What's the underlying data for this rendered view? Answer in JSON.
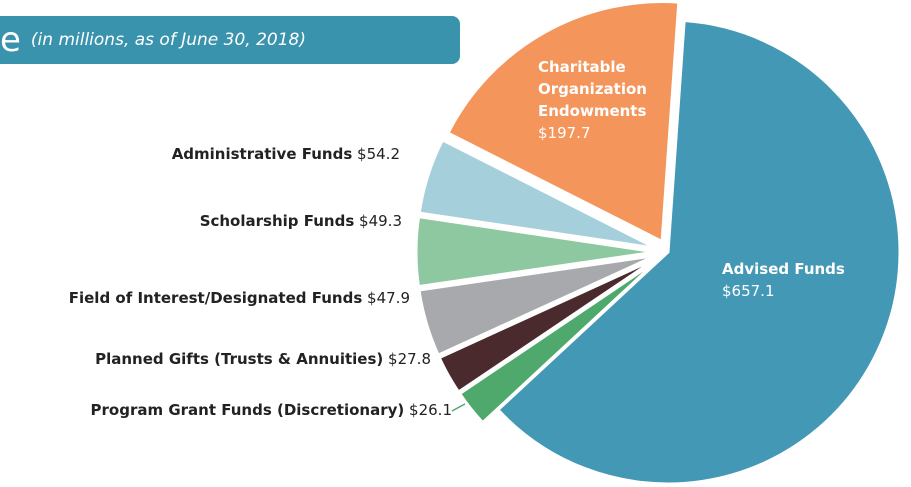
{
  "chart_data": {
    "type": "pie",
    "title": "e",
    "subtitle": "(in millions, as of June 30, 2018)",
    "categories": [
      "Advised Funds",
      "Program Grant Funds (Discretionary)",
      "Planned Gifts (Trusts & Annuities)",
      "Field of Interest/Designated Funds",
      "Scholarship Funds",
      "Administrative Funds",
      "Charitable Organization Endowments"
    ],
    "values": [
      657.1,
      26.1,
      27.8,
      47.9,
      49.3,
      54.2,
      197.7
    ],
    "value_labels": [
      "$657.1",
      "$26.1",
      "$27.8",
      "$47.9",
      "$49.3",
      "$54.2",
      "$197.7"
    ],
    "colors": [
      "#4398b5",
      "#4fa86c",
      "#4a2a2c",
      "#a8a9ad",
      "#8dc8a0",
      "#a6cfdc",
      "#f4965c"
    ]
  }
}
